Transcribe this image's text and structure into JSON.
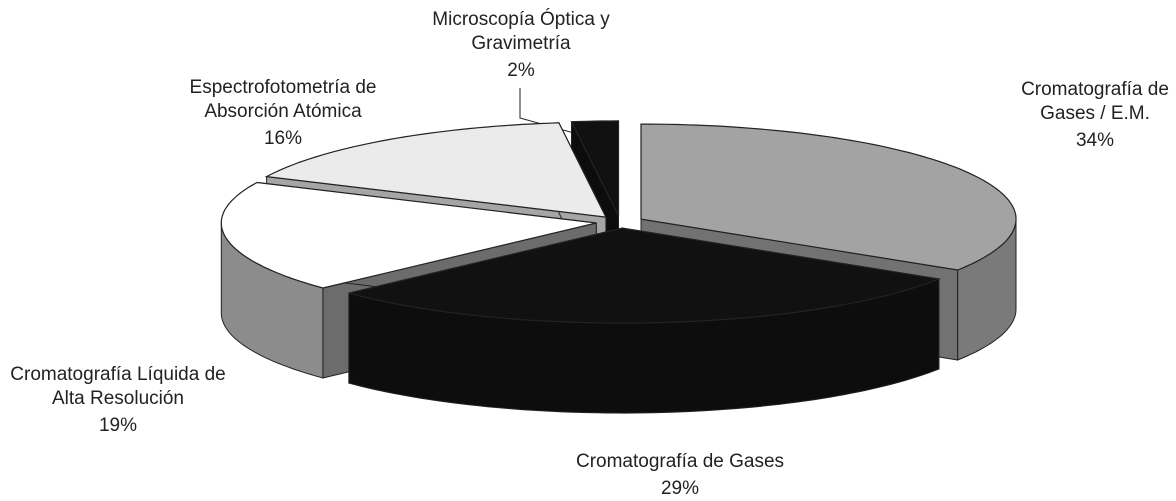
{
  "chart_data": {
    "type": "pie",
    "categories": [
      "Cromatografía de Gases / E.M.",
      "Cromatografía de Gases",
      "Cromatografía Líquida de Alta Resolución",
      "Espectrofotometría de Absorción Atómica",
      "Microscopía Óptica y Gravimetría"
    ],
    "values": [
      34,
      29,
      19,
      16,
      2
    ],
    "value_labels": [
      "34%",
      "29%",
      "19%",
      "16%",
      "2%"
    ],
    "colors": [
      "#a3a3a3",
      "#111111",
      "#ffffff",
      "#ebebeb",
      "#111111"
    ]
  }
}
